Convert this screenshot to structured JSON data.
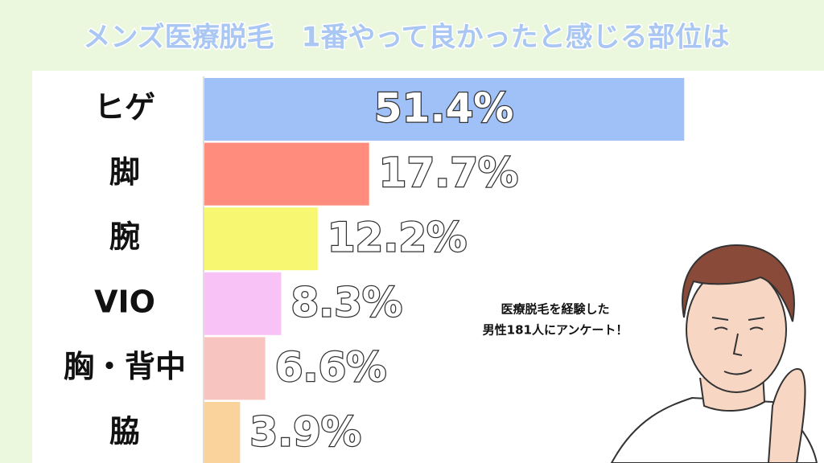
{
  "chart_data": {
    "type": "bar",
    "orientation": "horizontal",
    "title": "メンズ医療脱毛　1番やって良かったと感じる部位は",
    "categories": [
      "ヒゲ",
      "脚",
      "腕",
      "VIO",
      "胸・背中",
      "脇"
    ],
    "values": [
      51.4,
      17.7,
      12.2,
      8.3,
      6.6,
      3.9
    ],
    "value_labels": [
      "51.4%",
      "17.7%",
      "12.2%",
      "8.3%",
      "6.6%",
      "3.9%"
    ],
    "colors": [
      "#a0c0f8",
      "#ff8c7c",
      "#f7f772",
      "#f9c2f6",
      "#f8c4c0",
      "#f9d29c"
    ],
    "annotation": [
      "医療脱毛を経験した",
      "男性181人にアンケート！"
    ]
  }
}
